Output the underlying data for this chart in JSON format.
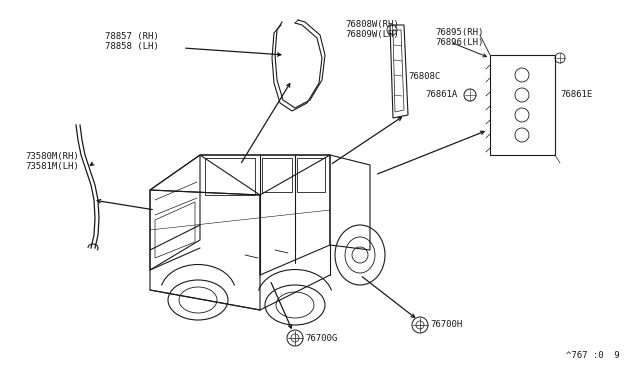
{
  "bg_color": "#ffffff",
  "line_color": "#1a1a1a",
  "text_color": "#1a1a1a",
  "watermark": "^767 :0  9",
  "fs": 6.5,
  "parts_labels": {
    "78857": "78857 (RH)\n78858 (LH)",
    "73580": "73580M(RH)\n73581M(LH)",
    "76808W": "76808W(RH)\n76809W(LH)",
    "76808C": "76808C",
    "76895": "76895(RH)\n76896(LH)",
    "76861A": "76861A",
    "76861E": "76861E",
    "76700G": "76700G",
    "76700H": "76700H"
  }
}
